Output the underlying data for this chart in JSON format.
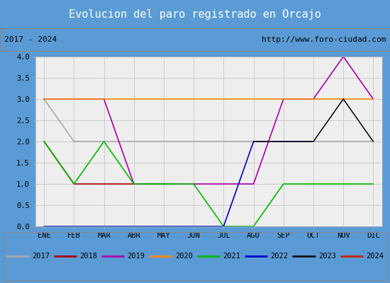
{
  "title": "Evolucion del paro registrado en Orcajo",
  "subtitle_left": "2017 - 2024",
  "subtitle_right": "http://www.foro-ciudad.com",
  "months": [
    "ENE",
    "FEB",
    "MAR",
    "ABR",
    "MAY",
    "JUN",
    "JUL",
    "AGO",
    "SEP",
    "OCT",
    "NOV",
    "DIC"
  ],
  "ylim": [
    0,
    4.0
  ],
  "yticks": [
    0.0,
    0.5,
    1.0,
    1.5,
    2.0,
    2.5,
    3.0,
    3.5,
    4.0
  ],
  "series": {
    "2017": {
      "color": "#aaaaaa",
      "data": [
        3,
        2,
        2,
        2,
        2,
        2,
        2,
        2,
        2,
        2,
        2,
        2
      ]
    },
    "2018": {
      "color": "#aa0000",
      "data": [
        2,
        1,
        1,
        1,
        1,
        null,
        null,
        null,
        null,
        null,
        null,
        null
      ]
    },
    "2019": {
      "color": "#aa00aa",
      "data": [
        3,
        3,
        3,
        1,
        1,
        1,
        1,
        1,
        3,
        3,
        4,
        3
      ]
    },
    "2020": {
      "color": "#ff8800",
      "data": [
        3,
        3,
        3,
        3,
        3,
        3,
        3,
        3,
        3,
        3,
        3,
        3
      ]
    },
    "2021": {
      "color": "#00bb00",
      "data": [
        2,
        1,
        2,
        1,
        1,
        1,
        0,
        0,
        1,
        1,
        1,
        1
      ]
    },
    "2022": {
      "color": "#0000cc",
      "data": [
        0,
        0,
        0,
        0,
        0,
        0,
        0,
        2,
        2,
        2,
        null,
        null
      ]
    },
    "2023": {
      "color": "#111111",
      "data": [
        null,
        null,
        null,
        null,
        null,
        null,
        null,
        2,
        2,
        2,
        3,
        2
      ]
    },
    "2024": {
      "color": "#cc2200",
      "data": [
        null,
        null,
        null,
        null,
        null,
        null,
        null,
        null,
        null,
        null,
        null,
        2
      ]
    }
  },
  "title_bg_color": "#5b9bd5",
  "title_text_color": "#ffffff",
  "plot_bg_color": "#eeeeee",
  "grid_color": "#cccccc",
  "legend_years": [
    "2017",
    "2018",
    "2019",
    "2020",
    "2021",
    "2022",
    "2023",
    "2024"
  ]
}
